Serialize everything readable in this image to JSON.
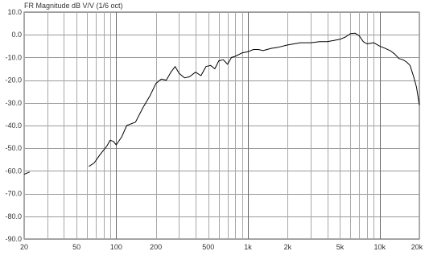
{
  "chart_data": {
    "type": "line",
    "title": "FR Magnitude dB V/V (1/6 oct)",
    "xscale": "log",
    "xlim": [
      20,
      20000
    ],
    "ylim": [
      -90,
      10
    ],
    "grid": true,
    "y_ticks": [
      10,
      0,
      -10,
      -20,
      -30,
      -40,
      -50,
      -60,
      -70,
      -80,
      -90
    ],
    "y_tick_labels": [
      "10.0",
      "0.0",
      "-10.0",
      "-20.0",
      "-30.0",
      "-40.0",
      "-50.0",
      "-60.0",
      "-70.0",
      "-80.0",
      "-90.0"
    ],
    "x_ticks": [
      20,
      50,
      100,
      200,
      500,
      1000,
      2000,
      5000,
      10000,
      20000
    ],
    "x_tick_labels": [
      "20",
      "50",
      "100",
      "200",
      "500",
      "1k",
      "2k",
      "5k",
      "10k",
      "20k"
    ],
    "series": [
      {
        "color": "#000000",
        "x": [
          20,
          22,
          62,
          68,
          75,
          85,
          90,
          95,
          100,
          110,
          120,
          140,
          160,
          180,
          200,
          220,
          240,
          260,
          280,
          300,
          330,
          360,
          400,
          440,
          480,
          520,
          560,
          600,
          650,
          700,
          750,
          800,
          900,
          1000,
          1100,
          1200,
          1300,
          1500,
          1700,
          2000,
          2500,
          3000,
          3500,
          4000,
          4500,
          5000,
          5500,
          6000,
          6500,
          7000,
          7500,
          8000,
          9000,
          10000,
          11000,
          12000,
          13000,
          14000,
          15000,
          16000,
          17000,
          18000,
          19000,
          20000
        ],
        "values": [
          -61.5,
          -60.5,
          -58,
          -56.5,
          -53,
          -49,
          -46.5,
          -47,
          -48.5,
          -45,
          -40,
          -38.5,
          -32,
          -27,
          -21.5,
          -19.5,
          -20,
          -16.5,
          -14,
          -17,
          -19,
          -18.5,
          -16.5,
          -18,
          -14,
          -13.5,
          -15,
          -11.5,
          -11,
          -13,
          -10,
          -9.5,
          -8,
          -7.5,
          -6.5,
          -6.5,
          -7,
          -6,
          -5.5,
          -4.5,
          -3.5,
          -3.5,
          -3,
          -3,
          -2.5,
          -2,
          -1,
          0.5,
          0.7,
          -0.5,
          -3,
          -4,
          -3.5,
          -5,
          -6,
          -7,
          -8.5,
          -10.5,
          -11,
          -12,
          -13.5,
          -18,
          -23,
          -31
        ]
      }
    ]
  }
}
